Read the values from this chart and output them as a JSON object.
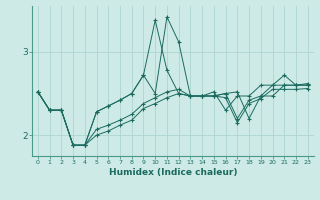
{
  "xlabel": "Humidex (Indice chaleur)",
  "ylabel": "",
  "background_color": "#ceeae7",
  "grid_color": "#aed4d0",
  "line_color": "#1a6b5e",
  "spine_color": "#4a9a8a",
  "xlim": [
    -0.5,
    23.5
  ],
  "ylim": [
    1.75,
    3.55
  ],
  "yticks": [
    2,
    3
  ],
  "xticks": [
    0,
    1,
    2,
    3,
    4,
    5,
    6,
    7,
    8,
    9,
    10,
    11,
    12,
    13,
    14,
    15,
    16,
    17,
    18,
    19,
    20,
    21,
    22,
    23
  ],
  "series": [
    {
      "x": [
        0,
        1,
        2,
        3,
        4,
        5,
        6,
        7,
        8,
        9,
        10,
        11,
        12,
        13,
        14,
        15,
        16,
        17,
        18,
        19,
        20,
        21,
        22,
        23
      ],
      "y": [
        2.52,
        2.3,
        2.3,
        1.88,
        1.88,
        2.28,
        2.35,
        2.42,
        2.5,
        2.72,
        3.38,
        2.78,
        2.5,
        2.47,
        2.47,
        2.52,
        2.3,
        2.47,
        2.47,
        2.6,
        2.6,
        2.72,
        2.6,
        2.62
      ]
    },
    {
      "x": [
        0,
        1,
        2,
        3,
        4,
        5,
        6,
        7,
        8,
        9,
        10,
        11,
        12,
        13,
        14,
        15,
        16,
        17,
        18,
        19,
        20,
        21,
        22,
        23
      ],
      "y": [
        2.52,
        2.3,
        2.3,
        1.88,
        1.88,
        2.07,
        2.12,
        2.18,
        2.25,
        2.38,
        2.45,
        2.52,
        2.55,
        2.47,
        2.47,
        2.47,
        2.5,
        2.2,
        2.42,
        2.47,
        2.6,
        2.6,
        2.6,
        2.6
      ]
    },
    {
      "x": [
        0,
        1,
        2,
        3,
        4,
        5,
        6,
        7,
        8,
        9,
        10,
        11,
        12,
        13,
        14,
        15,
        16,
        17,
        18,
        19,
        20,
        21,
        22,
        23
      ],
      "y": [
        2.52,
        2.3,
        2.3,
        1.88,
        1.88,
        2.28,
        2.35,
        2.42,
        2.5,
        2.72,
        2.5,
        3.42,
        3.12,
        2.47,
        2.47,
        2.47,
        2.5,
        2.52,
        2.2,
        2.47,
        2.47,
        2.6,
        2.6,
        2.6
      ]
    },
    {
      "x": [
        0,
        1,
        2,
        3,
        4,
        5,
        6,
        7,
        8,
        9,
        10,
        11,
        12,
        13,
        14,
        15,
        16,
        17,
        18,
        19,
        20,
        21,
        22,
        23
      ],
      "y": [
        2.52,
        2.3,
        2.3,
        1.88,
        1.88,
        2.0,
        2.05,
        2.12,
        2.18,
        2.32,
        2.38,
        2.45,
        2.5,
        2.47,
        2.47,
        2.47,
        2.45,
        2.15,
        2.38,
        2.44,
        2.55,
        2.55,
        2.55,
        2.56
      ]
    }
  ]
}
